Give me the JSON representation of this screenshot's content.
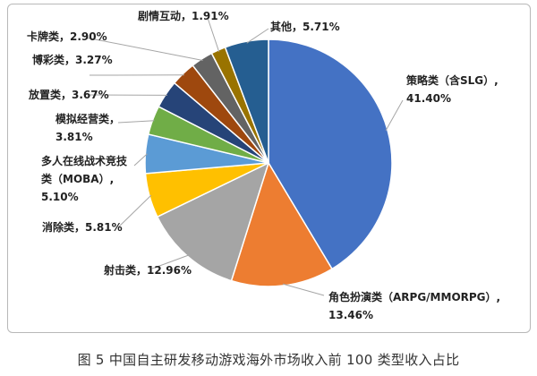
{
  "chart_data": {
    "type": "pie",
    "caption": "图 5 中国自主研发移动游戏海外市场收入前 100 类型收入占比",
    "slices": [
      {
        "label_lines": [
          "策略类（含SLG）,",
          "41.40%"
        ],
        "value": 41.4,
        "color": "#4472C4"
      },
      {
        "label_lines": [
          "角色扮演类（ARPG/MMORPG）,",
          "13.46%"
        ],
        "value": 13.46,
        "color": "#ED7D31"
      },
      {
        "label_lines": [
          "射击类，12.96%"
        ],
        "value": 12.96,
        "color": "#A5A5A5"
      },
      {
        "label_lines": [
          "消除类，5.81%"
        ],
        "value": 5.81,
        "color": "#FFC000"
      },
      {
        "label_lines": [
          "多人在线战术竞技",
          "类（MOBA）,",
          "5.10%"
        ],
        "value": 5.1,
        "color": "#5B9BD5"
      },
      {
        "label_lines": [
          "模拟经营类，",
          "3.81%"
        ],
        "value": 3.81,
        "color": "#70AD47"
      },
      {
        "label_lines": [
          "放置类，3.67%"
        ],
        "value": 3.67,
        "color": "#264478"
      },
      {
        "label_lines": [
          "博彩类，3.27%"
        ],
        "value": 3.27,
        "color": "#9E480E"
      },
      {
        "label_lines": [
          "卡牌类，2.90%"
        ],
        "value": 2.9,
        "color": "#636363"
      },
      {
        "label_lines": [
          "剧情互动，1.91%"
        ],
        "value": 1.91,
        "color": "#997300"
      },
      {
        "label_lines": [
          "其他，5.71%"
        ],
        "value": 5.71,
        "color": "#255E91"
      }
    ]
  }
}
